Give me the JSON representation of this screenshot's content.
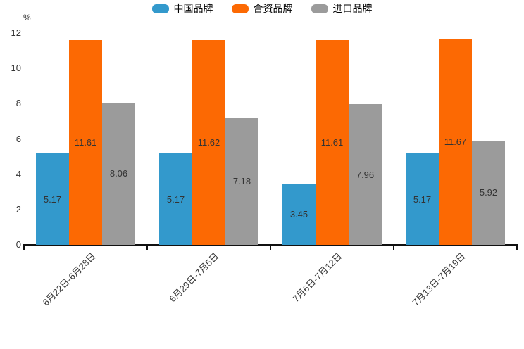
{
  "chart_data": {
    "type": "bar",
    "title": "",
    "unit_label": "%",
    "categories": [
      "6月22日-6月28日",
      "6月29日-7月5日",
      "7月6日-7月12日",
      "7月13日-7月19日"
    ],
    "series": [
      {
        "name": "中国品牌",
        "color": "#3399CC",
        "values": [
          5.17,
          5.17,
          3.45,
          5.17
        ]
      },
      {
        "name": "合资品牌",
        "color": "#FC6903",
        "values": [
          11.61,
          11.62,
          11.61,
          11.67
        ]
      },
      {
        "name": "进口品牌",
        "color": "#9B9B9B",
        "values": [
          8.06,
          7.18,
          7.96,
          5.92
        ]
      }
    ],
    "value_labels": [
      "5.17",
      "11.61",
      "8.06",
      "5.17",
      "11.62",
      "7.18",
      "3.45",
      "11.61",
      "7.96",
      "5.17",
      "11.67",
      "5.92"
    ],
    "y_ticks": [
      "0",
      "2",
      "4",
      "6",
      "8",
      "10",
      "12"
    ],
    "ylim": [
      0,
      12
    ],
    "grid": false,
    "legend_position": "top",
    "value_label_position": "inside-center"
  },
  "colors": {
    "axis": "#111111",
    "tick_text": "#333333",
    "value_text": "#333333",
    "legend_text": "#000000",
    "background": "#ffffff"
  }
}
